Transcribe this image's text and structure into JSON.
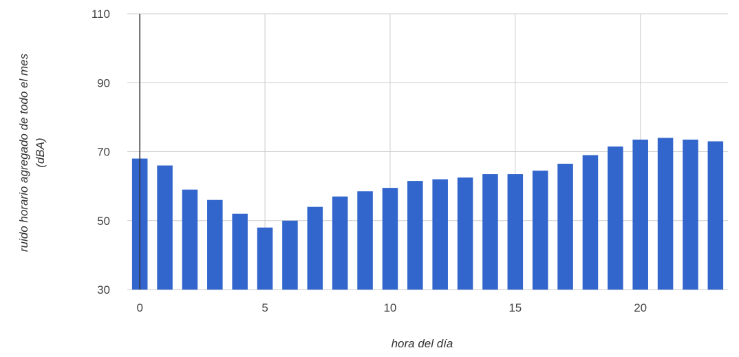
{
  "chart_data": {
    "type": "bar",
    "x": [
      0,
      1,
      2,
      3,
      4,
      5,
      6,
      7,
      8,
      9,
      10,
      11,
      12,
      13,
      14,
      15,
      16,
      17,
      18,
      19,
      20,
      21,
      22,
      23
    ],
    "values": [
      68,
      66,
      59,
      56,
      52,
      48,
      50,
      54,
      57,
      58.5,
      59.5,
      61.5,
      62,
      62.5,
      63.5,
      63.5,
      64.5,
      66.5,
      69,
      71.5,
      73.5,
      74,
      73.5,
      73
    ],
    "xticks": [
      "0",
      "5",
      "10",
      "15",
      "20"
    ],
    "yticks": [
      "30",
      "50",
      "70",
      "90",
      "110"
    ],
    "xlabel": "hora del día",
    "ylabel_line1": "ruido horario agregado de todo el mes",
    "ylabel_line2": "(dBA)",
    "ylim": [
      30,
      110
    ],
    "xlim": [
      -0.5,
      23.5
    ],
    "grid": true,
    "colors": {
      "bar": "#3366cc",
      "grid": "#cccccc",
      "zero_line": "#333333"
    }
  }
}
